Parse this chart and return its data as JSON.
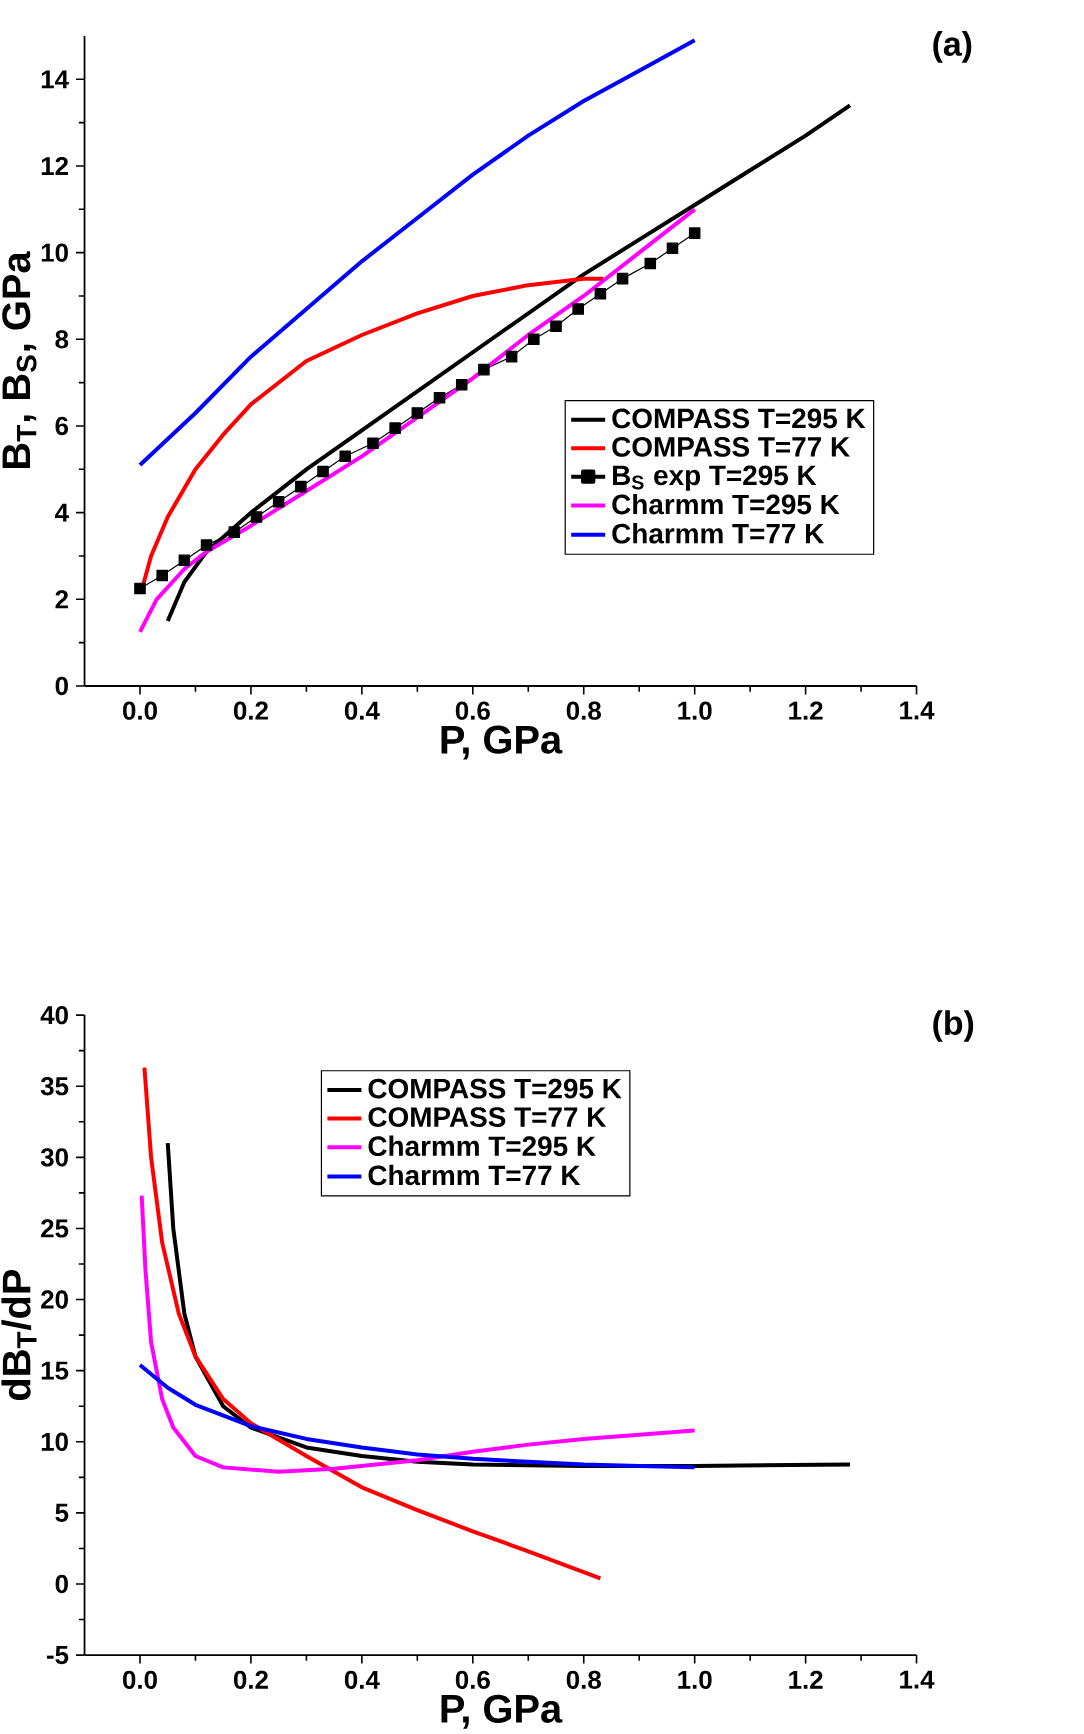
{
  "chart_data": [
    {
      "type": "line",
      "title": "(a)",
      "xlabel": "P, GPa",
      "ylabel": "B$_{T}$, B$_{S}$, GPa",
      "xlim": [
        -0.1,
        1.4
      ],
      "ylim": [
        0,
        15
      ],
      "xticks": [
        {
          "value": 0,
          "label": "0.0"
        },
        {
          "value": 0.2,
          "label": "0.2"
        },
        {
          "value": 0.4,
          "label": "0.4"
        },
        {
          "value": 0.6,
          "label": "0.6"
        },
        {
          "value": 0.8,
          "label": "0.8"
        },
        {
          "value": 1.0,
          "label": "1.0"
        },
        {
          "value": 1.2,
          "label": "1.2"
        },
        {
          "value": 1.4,
          "label": "1.4"
        }
      ],
      "yticks": [
        0,
        2,
        4,
        6,
        8,
        10,
        12,
        14
      ],
      "legend": "right",
      "grid": false,
      "series": [
        {
          "name": "COMPASS T=295 K",
          "color": "#000000",
          "x": [
            0.05,
            0.08,
            0.12,
            0.2,
            0.3,
            0.4,
            0.5,
            0.6,
            0.7,
            0.8,
            0.9,
            1.0,
            1.1,
            1.2,
            1.28
          ],
          "values": [
            1.5,
            2.4,
            3.1,
            4.0,
            5.0,
            5.9,
            6.8,
            7.7,
            8.6,
            9.5,
            10.3,
            11.1,
            11.9,
            12.7,
            13.4
          ]
        },
        {
          "name": "COMPASS T=77 K",
          "color": "#ff0000",
          "x": [
            0.005,
            0.02,
            0.05,
            0.1,
            0.15,
            0.2,
            0.3,
            0.4,
            0.5,
            0.6,
            0.7,
            0.8,
            0.835
          ],
          "values": [
            2.3,
            3.0,
            3.9,
            5.0,
            5.8,
            6.5,
            7.5,
            8.1,
            8.6,
            9.0,
            9.25,
            9.4,
            9.4
          ]
        },
        {
          "name": "B$_{S}$ exp T=295 K",
          "color": "#000000",
          "marker": "square",
          "x": [
            0,
            0.04,
            0.08,
            0.12,
            0.17,
            0.21,
            0.25,
            0.29,
            0.33,
            0.37,
            0.42,
            0.46,
            0.5,
            0.54,
            0.58,
            0.62,
            0.67,
            0.71,
            0.75,
            0.79,
            0.83,
            0.87,
            0.92,
            0.96,
            1.0
          ],
          "values": [
            2.25,
            2.55,
            2.9,
            3.25,
            3.55,
            3.9,
            4.25,
            4.6,
            4.95,
            5.3,
            5.6,
            5.95,
            6.3,
            6.65,
            6.95,
            7.3,
            7.6,
            8.0,
            8.3,
            8.7,
            9.05,
            9.4,
            9.75,
            10.1,
            10.45
          ]
        },
        {
          "name": "Charmm T=295 K",
          "color": "#ff00ff",
          "x": [
            0,
            0.03,
            0.08,
            0.12,
            0.2,
            0.3,
            0.4,
            0.5,
            0.6,
            0.7,
            0.8,
            0.9,
            1.0
          ],
          "values": [
            1.25,
            2.0,
            2.7,
            3.1,
            3.7,
            4.5,
            5.3,
            6.2,
            7.1,
            8.1,
            9.0,
            10.0,
            11.0
          ]
        },
        {
          "name": "Charmm T=77 K",
          "color": "#0000ff",
          "x": [
            0,
            0.1,
            0.2,
            0.3,
            0.4,
            0.5,
            0.6,
            0.7,
            0.8,
            0.9,
            1.0
          ],
          "values": [
            5.1,
            6.3,
            7.6,
            8.7,
            9.8,
            10.8,
            11.8,
            12.7,
            13.5,
            14.2,
            14.9
          ]
        }
      ]
    },
    {
      "type": "line",
      "title": "(b)",
      "xlabel": "P, GPa",
      "ylabel": "dB$_{T}$/dP",
      "xlim": [
        -0.1,
        1.4
      ],
      "ylim": [
        -5,
        40
      ],
      "xticks": [
        {
          "value": 0,
          "label": "0.0"
        },
        {
          "value": 0.2,
          "label": "0.2"
        },
        {
          "value": 0.4,
          "label": "0.4"
        },
        {
          "value": 0.6,
          "label": "0.6"
        },
        {
          "value": 0.8,
          "label": "0.8"
        },
        {
          "value": 1.0,
          "label": "1.0"
        },
        {
          "value": 1.2,
          "label": "1.2"
        },
        {
          "value": 1.4,
          "label": "1.4"
        }
      ],
      "yticks": [
        -5,
        0,
        5,
        10,
        15,
        20,
        25,
        30,
        35,
        40
      ],
      "legend": "top right",
      "grid": false,
      "series": [
        {
          "name": "COMPASS T=295 K",
          "color": "#000000",
          "x": [
            0.05,
            0.06,
            0.08,
            0.1,
            0.15,
            0.2,
            0.3,
            0.4,
            0.5,
            0.6,
            0.8,
            1.0,
            1.28
          ],
          "values": [
            31,
            25,
            19,
            16,
            12.5,
            11,
            9.6,
            9.0,
            8.6,
            8.4,
            8.3,
            8.3,
            8.4
          ]
        },
        {
          "name": "COMPASS T=77 K",
          "color": "#ff0000",
          "x": [
            0.008,
            0.02,
            0.04,
            0.07,
            0.1,
            0.15,
            0.2,
            0.3,
            0.4,
            0.5,
            0.6,
            0.7,
            0.83
          ],
          "values": [
            36.3,
            30,
            24,
            19,
            16,
            13,
            11.3,
            9.0,
            6.8,
            5.2,
            3.7,
            2.3,
            0.4
          ]
        },
        {
          "name": "Charmm T=295 K",
          "color": "#ff00ff",
          "x": [
            0.003,
            0.01,
            0.02,
            0.04,
            0.06,
            0.1,
            0.15,
            0.25,
            0.35,
            0.5,
            0.6,
            0.7,
            0.8,
            0.9,
            1.0
          ],
          "values": [
            27.3,
            22,
            17,
            13,
            11,
            9.0,
            8.2,
            7.9,
            8.1,
            8.7,
            9.3,
            9.8,
            10.2,
            10.5,
            10.8
          ]
        },
        {
          "name": "Charmm T=77 K",
          "color": "#0000ff",
          "x": [
            0,
            0.05,
            0.1,
            0.2,
            0.3,
            0.4,
            0.5,
            0.6,
            0.7,
            0.8,
            0.9,
            1.0
          ],
          "values": [
            15.4,
            13.8,
            12.6,
            11.1,
            10.2,
            9.6,
            9.1,
            8.8,
            8.6,
            8.4,
            8.3,
            8.2
          ]
        }
      ]
    }
  ]
}
